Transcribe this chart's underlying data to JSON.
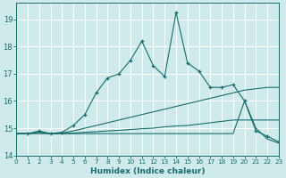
{
  "xlabel": "Humidex (Indice chaleur)",
  "bg_color": "#ceeaea",
  "grid_color": "#ffffff",
  "line_color": "#1a6b6b",
  "xlim": [
    0,
    23
  ],
  "ylim": [
    14.0,
    19.6
  ],
  "yticks": [
    14,
    15,
    16,
    17,
    18,
    19
  ],
  "xticks": [
    0,
    1,
    2,
    3,
    4,
    5,
    6,
    7,
    8,
    9,
    10,
    11,
    12,
    13,
    14,
    15,
    16,
    17,
    18,
    19,
    20,
    21,
    22,
    23
  ],
  "series": [
    {
      "x": [
        0,
        1,
        2,
        3,
        4,
        5,
        6,
        7,
        8,
        9,
        10,
        11,
        12,
        13,
        14,
        15,
        16,
        17,
        18,
        19,
        20,
        21,
        22,
        23
      ],
      "y": [
        14.8,
        14.8,
        14.9,
        14.8,
        14.85,
        15.1,
        15.5,
        16.3,
        16.85,
        17.0,
        17.5,
        18.2,
        17.3,
        16.9,
        19.25,
        17.4,
        17.1,
        16.5,
        16.5,
        16.6,
        16.0,
        14.9,
        14.7,
        14.5
      ],
      "marker": true
    },
    {
      "x": [
        0,
        1,
        2,
        3,
        4,
        5,
        6,
        7,
        8,
        9,
        10,
        11,
        12,
        13,
        14,
        15,
        16,
        17,
        18,
        19,
        20,
        21,
        22,
        23
      ],
      "y": [
        14.8,
        14.8,
        14.85,
        14.8,
        14.8,
        14.82,
        14.85,
        14.87,
        14.9,
        14.92,
        14.95,
        14.98,
        15.0,
        15.05,
        15.08,
        15.1,
        15.15,
        15.2,
        15.25,
        15.3,
        15.3,
        15.3,
        15.3,
        15.3
      ],
      "marker": false
    },
    {
      "x": [
        0,
        1,
        2,
        3,
        4,
        5,
        6,
        7,
        8,
        9,
        10,
        11,
        12,
        13,
        14,
        15,
        16,
        17,
        18,
        19,
        20,
        21,
        22,
        23
      ],
      "y": [
        14.8,
        14.8,
        14.85,
        14.8,
        14.82,
        14.9,
        15.0,
        15.1,
        15.2,
        15.3,
        15.4,
        15.5,
        15.6,
        15.7,
        15.8,
        15.9,
        16.0,
        16.1,
        16.2,
        16.3,
        16.4,
        16.45,
        16.5,
        16.5
      ],
      "marker": false
    },
    {
      "x": [
        0,
        1,
        2,
        3,
        4,
        5,
        6,
        7,
        8,
        9,
        10,
        11,
        12,
        13,
        14,
        15,
        16,
        17,
        18,
        19,
        20,
        21,
        22,
        23
      ],
      "y": [
        14.8,
        14.8,
        14.8,
        14.8,
        14.8,
        14.8,
        14.8,
        14.8,
        14.8,
        14.8,
        14.8,
        14.8,
        14.8,
        14.8,
        14.8,
        14.8,
        14.8,
        14.8,
        14.8,
        14.8,
        16.0,
        15.0,
        14.6,
        14.45
      ],
      "marker": false
    }
  ]
}
